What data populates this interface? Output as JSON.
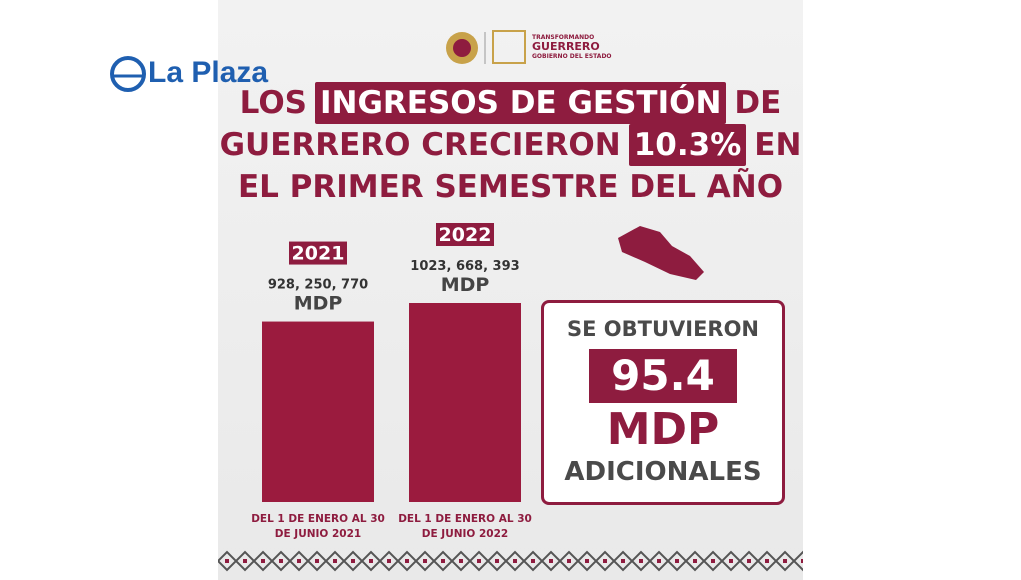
{
  "brand": "La Plaza",
  "logo_text": [
    "TRANSFORMANDO",
    "GUERRERO",
    "GOBIERNO DEL ESTADO"
  ],
  "chart_data": {
    "type": "bar",
    "title": [
      [
        "LOS",
        "INGRESOS DE GESTIÓN",
        "DE"
      ],
      [
        "GUERRERO CRECIERON",
        "10.3%",
        "EN"
      ],
      [
        "EL PRIMER SEMESTRE DEL AÑO"
      ]
    ],
    "categories": [
      "2021",
      "2022"
    ],
    "values": [
      928250770,
      1023668393
    ],
    "value_labels": [
      "928, 250, 770",
      "1023, 668, 393"
    ],
    "unit": "MDP",
    "period_labels": [
      "DEL 1 DE ENERO AL 30 DE JUNIO 2021",
      "DEL 1 DE ENERO AL 30 DE JUNIO 2022"
    ],
    "color": "#9b1b3e"
  },
  "callout": {
    "intro": "SE OBTUVIERON",
    "amount": 95.4,
    "unit": "MDP",
    "outro": "ADICIONALES"
  }
}
